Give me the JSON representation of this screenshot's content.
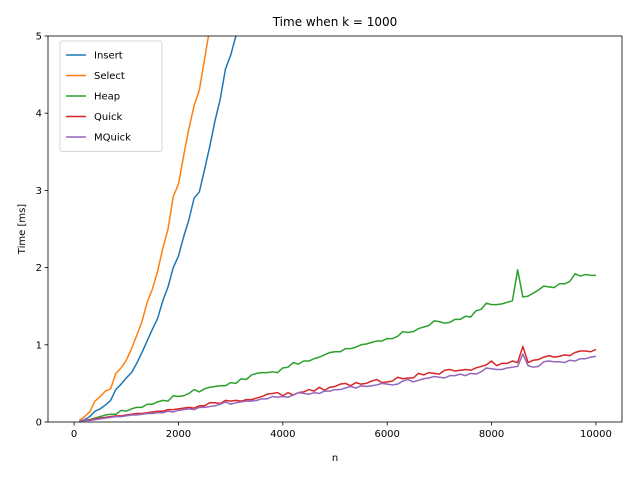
{
  "chart_data": {
    "type": "line",
    "title": "Time when k = 1000",
    "xlabel": "n",
    "ylabel": "Time [ms]",
    "xlim": [
      -500,
      10500
    ],
    "ylim": [
      0,
      5
    ],
    "xticks": [
      0,
      2000,
      4000,
      6000,
      8000,
      10000
    ],
    "yticks": [
      0,
      1,
      2,
      3,
      4,
      5
    ],
    "legend_position": "upper-left",
    "series": [
      {
        "name": "Insert",
        "color": "#1f77b4",
        "x": [
          100,
          200,
          300,
          400,
          500,
          600,
          700,
          800,
          900,
          1000,
          1100,
          1200,
          1300,
          1400,
          1500,
          1600,
          1700,
          1800,
          1900,
          2000,
          2100,
          2200,
          2300,
          2400,
          2500,
          2600,
          2700,
          2800,
          2900,
          3000,
          3100,
          3200
        ],
        "y": [
          0.01,
          0.03,
          0.07,
          0.14,
          0.17,
          0.22,
          0.28,
          0.42,
          0.49,
          0.57,
          0.64,
          0.76,
          0.9,
          1.05,
          1.2,
          1.34,
          1.57,
          1.75,
          2.0,
          2.15,
          2.4,
          2.62,
          2.9,
          2.98,
          3.27,
          3.57,
          3.9,
          4.18,
          4.57,
          4.75,
          5.0,
          5.25
        ]
      },
      {
        "name": "Select",
        "color": "#ff7f0e",
        "x": [
          100,
          200,
          300,
          400,
          500,
          600,
          700,
          800,
          900,
          1000,
          1100,
          1200,
          1300,
          1400,
          1500,
          1600,
          1700,
          1800,
          1900,
          2000,
          2100,
          2200,
          2300,
          2400,
          2500,
          2600,
          2700
        ],
        "y": [
          0.02,
          0.07,
          0.13,
          0.27,
          0.33,
          0.4,
          0.43,
          0.63,
          0.7,
          0.8,
          0.95,
          1.12,
          1.3,
          1.55,
          1.72,
          1.95,
          2.25,
          2.5,
          2.92,
          3.08,
          3.45,
          3.8,
          4.1,
          4.3,
          4.7,
          5.1,
          5.5
        ]
      },
      {
        "name": "Heap",
        "color": "#2ca02c",
        "x": [
          100,
          200,
          300,
          400,
          500,
          600,
          700,
          800,
          900,
          1000,
          1100,
          1200,
          1300,
          1400,
          1500,
          1600,
          1700,
          1800,
          1900,
          2000,
          2100,
          2200,
          2300,
          2400,
          2500,
          2600,
          2700,
          2800,
          2900,
          3000,
          3100,
          3200,
          3300,
          3400,
          3500,
          3600,
          3700,
          3800,
          3900,
          4000,
          4100,
          4200,
          4300,
          4400,
          4500,
          4600,
          4700,
          4800,
          4900,
          5000,
          5100,
          5200,
          5300,
          5400,
          5500,
          5600,
          5700,
          5800,
          5900,
          6000,
          6100,
          6200,
          6300,
          6400,
          6500,
          6600,
          6700,
          6800,
          6900,
          7000,
          7100,
          7200,
          7300,
          7400,
          7500,
          7600,
          7700,
          7800,
          7900,
          8000,
          8100,
          8200,
          8300,
          8400,
          8500,
          8600,
          8700,
          8800,
          8900,
          9000,
          9100,
          9200,
          9300,
          9400,
          9500,
          9600,
          9700,
          9800,
          9900,
          10000
        ],
        "y": [
          0.01,
          0.02,
          0.03,
          0.05,
          0.07,
          0.09,
          0.1,
          0.1,
          0.15,
          0.14,
          0.17,
          0.19,
          0.19,
          0.23,
          0.23,
          0.26,
          0.28,
          0.27,
          0.34,
          0.33,
          0.34,
          0.37,
          0.42,
          0.39,
          0.43,
          0.45,
          0.46,
          0.47,
          0.47,
          0.51,
          0.5,
          0.56,
          0.55,
          0.61,
          0.63,
          0.64,
          0.64,
          0.65,
          0.64,
          0.7,
          0.71,
          0.77,
          0.75,
          0.79,
          0.79,
          0.82,
          0.84,
          0.87,
          0.9,
          0.91,
          0.91,
          0.95,
          0.95,
          0.97,
          1.0,
          1.01,
          1.03,
          1.05,
          1.05,
          1.08,
          1.08,
          1.11,
          1.17,
          1.16,
          1.17,
          1.21,
          1.23,
          1.25,
          1.31,
          1.3,
          1.28,
          1.29,
          1.33,
          1.33,
          1.37,
          1.36,
          1.44,
          1.46,
          1.54,
          1.52,
          1.52,
          1.53,
          1.55,
          1.57,
          1.97,
          1.62,
          1.63,
          1.67,
          1.71,
          1.76,
          1.75,
          1.74,
          1.79,
          1.79,
          1.82,
          1.92,
          1.89,
          1.91,
          1.9,
          1.9
        ]
      },
      {
        "name": "Quick",
        "color": "#d62728",
        "x": [
          100,
          200,
          300,
          400,
          500,
          600,
          700,
          800,
          900,
          1000,
          1100,
          1200,
          1300,
          1400,
          1500,
          1600,
          1700,
          1800,
          1900,
          2000,
          2100,
          2200,
          2300,
          2400,
          2500,
          2600,
          2700,
          2800,
          2900,
          3000,
          3100,
          3200,
          3300,
          3400,
          3500,
          3600,
          3700,
          3800,
          3900,
          4000,
          4100,
          4200,
          4300,
          4400,
          4500,
          4600,
          4700,
          4800,
          4900,
          5000,
          5100,
          5200,
          5300,
          5400,
          5500,
          5600,
          5700,
          5800,
          5900,
          6000,
          6100,
          6200,
          6300,
          6400,
          6500,
          6600,
          6700,
          6800,
          6900,
          7000,
          7100,
          7200,
          7300,
          7400,
          7500,
          7600,
          7700,
          7800,
          7900,
          8000,
          8100,
          8200,
          8300,
          8400,
          8500,
          8600,
          8700,
          8800,
          8900,
          9000,
          9100,
          9200,
          9300,
          9400,
          9500,
          9600,
          9700,
          9800,
          9900,
          10000
        ],
        "y": [
          0.01,
          0.02,
          0.03,
          0.04,
          0.05,
          0.06,
          0.07,
          0.08,
          0.08,
          0.09,
          0.1,
          0.11,
          0.11,
          0.12,
          0.13,
          0.14,
          0.14,
          0.16,
          0.16,
          0.17,
          0.18,
          0.19,
          0.18,
          0.21,
          0.21,
          0.25,
          0.25,
          0.24,
          0.28,
          0.27,
          0.28,
          0.27,
          0.29,
          0.29,
          0.31,
          0.33,
          0.36,
          0.37,
          0.38,
          0.34,
          0.38,
          0.35,
          0.38,
          0.39,
          0.42,
          0.4,
          0.45,
          0.41,
          0.45,
          0.46,
          0.49,
          0.5,
          0.47,
          0.51,
          0.49,
          0.5,
          0.53,
          0.55,
          0.51,
          0.52,
          0.53,
          0.58,
          0.56,
          0.57,
          0.57,
          0.63,
          0.61,
          0.64,
          0.63,
          0.62,
          0.67,
          0.68,
          0.66,
          0.67,
          0.68,
          0.67,
          0.7,
          0.72,
          0.74,
          0.79,
          0.73,
          0.76,
          0.76,
          0.79,
          0.77,
          0.98,
          0.77,
          0.8,
          0.81,
          0.84,
          0.86,
          0.84,
          0.85,
          0.87,
          0.86,
          0.9,
          0.92,
          0.92,
          0.91,
          0.94
        ]
      },
      {
        "name": "MQuick",
        "color": "#9467bd",
        "x": [
          100,
          200,
          300,
          400,
          500,
          600,
          700,
          800,
          900,
          1000,
          1100,
          1200,
          1300,
          1400,
          1500,
          1600,
          1700,
          1800,
          1900,
          2000,
          2100,
          2200,
          2300,
          2400,
          2500,
          2600,
          2700,
          2800,
          2900,
          3000,
          3100,
          3200,
          3300,
          3400,
          3500,
          3600,
          3700,
          3800,
          3900,
          4000,
          4100,
          4200,
          4300,
          4400,
          4500,
          4600,
          4700,
          4800,
          4900,
          5000,
          5100,
          5200,
          5300,
          5400,
          5500,
          5600,
          5700,
          5800,
          5900,
          6000,
          6100,
          6200,
          6300,
          6400,
          6500,
          6600,
          6700,
          6800,
          6900,
          7000,
          7100,
          7200,
          7300,
          7400,
          7500,
          7600,
          7700,
          7800,
          7900,
          8000,
          8100,
          8200,
          8300,
          8400,
          8500,
          8600,
          8700,
          8800,
          8900,
          9000,
          9100,
          9200,
          9300,
          9400,
          9500,
          9600,
          9700,
          9800,
          9900,
          10000
        ],
        "y": [
          0.01,
          0.02,
          0.02,
          0.03,
          0.04,
          0.05,
          0.06,
          0.07,
          0.07,
          0.08,
          0.09,
          0.09,
          0.1,
          0.11,
          0.11,
          0.12,
          0.12,
          0.14,
          0.13,
          0.15,
          0.16,
          0.17,
          0.16,
          0.19,
          0.19,
          0.2,
          0.21,
          0.23,
          0.26,
          0.23,
          0.25,
          0.26,
          0.27,
          0.27,
          0.28,
          0.3,
          0.3,
          0.33,
          0.32,
          0.33,
          0.32,
          0.35,
          0.38,
          0.37,
          0.36,
          0.38,
          0.37,
          0.4,
          0.4,
          0.42,
          0.42,
          0.44,
          0.46,
          0.44,
          0.47,
          0.46,
          0.47,
          0.48,
          0.5,
          0.49,
          0.48,
          0.49,
          0.53,
          0.55,
          0.52,
          0.54,
          0.56,
          0.57,
          0.59,
          0.58,
          0.57,
          0.6,
          0.6,
          0.62,
          0.6,
          0.63,
          0.62,
          0.65,
          0.7,
          0.69,
          0.68,
          0.68,
          0.7,
          0.71,
          0.72,
          0.88,
          0.73,
          0.71,
          0.72,
          0.78,
          0.79,
          0.78,
          0.78,
          0.77,
          0.8,
          0.79,
          0.82,
          0.82,
          0.84,
          0.85
        ]
      }
    ]
  }
}
